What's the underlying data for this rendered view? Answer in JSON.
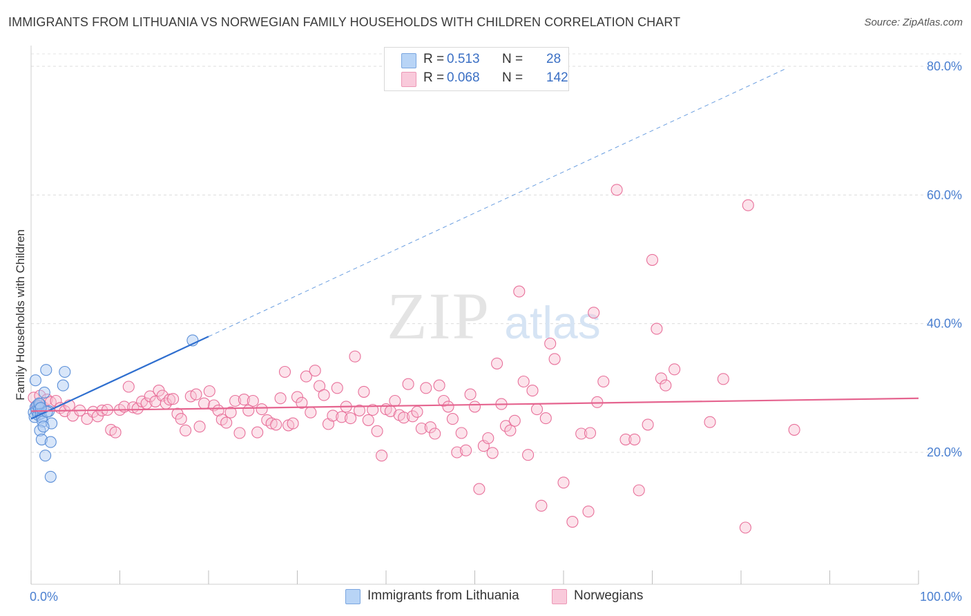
{
  "header": {
    "title": "IMMIGRANTS FROM LITHUANIA VS NORWEGIAN FAMILY HOUSEHOLDS WITH CHILDREN CORRELATION CHART",
    "source": "Source: ZipAtlas.com"
  },
  "legend": {
    "r_label": "R =",
    "n_label": "N =",
    "rows": [
      {
        "r": "0.513",
        "n": "28",
        "color": "#a9c8f2"
      },
      {
        "r": "0.068",
        "n": "142",
        "color": "#f8c0d2"
      }
    ]
  },
  "watermark": {
    "zip": "ZIP",
    "atlas": "atlas"
  },
  "chart_data": {
    "type": "scatter",
    "ylabel": "Family Households with Children",
    "xlim": [
      0,
      100
    ],
    "ylim": [
      0,
      85
    ],
    "x_tick_labels": [
      {
        "value": 0,
        "label": "0.0%"
      },
      {
        "value": 100,
        "label": "100.0%"
      }
    ],
    "y_ticks": [
      {
        "value": 20,
        "label": "20.0%"
      },
      {
        "value": 40,
        "label": "40.0%"
      },
      {
        "value": 60,
        "label": "60.0%"
      },
      {
        "value": 80,
        "label": "80.0%"
      }
    ],
    "grid": "horizontal dashed",
    "series": [
      {
        "name": "Immigrants from Lithuania",
        "color": "#5b8fd8",
        "fill": "#a9c8f2",
        "trend": {
          "x0": 0,
          "y0": 25.2,
          "x1": 20,
          "y1": 38.0,
          "extend_dashed_to_x": 85
        },
        "points": [
          [
            0.3,
            26.2
          ],
          [
            0.4,
            25.5
          ],
          [
            0.5,
            27.0
          ],
          [
            0.6,
            26.5
          ],
          [
            0.7,
            27.3
          ],
          [
            0.8,
            25.8
          ],
          [
            0.9,
            26.8
          ],
          [
            1.0,
            27.5
          ],
          [
            1.1,
            26.0
          ],
          [
            1.2,
            25.4
          ],
          [
            0.5,
            31.2
          ],
          [
            1.3,
            24.8
          ],
          [
            1.5,
            29.3
          ],
          [
            1.7,
            32.8
          ],
          [
            2.0,
            26.4
          ],
          [
            2.3,
            24.5
          ],
          [
            3.6,
            30.4
          ],
          [
            3.8,
            32.5
          ],
          [
            1.0,
            23.4
          ],
          [
            1.2,
            22.0
          ],
          [
            2.2,
            21.6
          ],
          [
            1.6,
            19.5
          ],
          [
            2.2,
            16.2
          ],
          [
            18.2,
            37.4
          ],
          [
            1.4,
            24.0
          ],
          [
            1.8,
            26.3
          ],
          [
            0.9,
            27.6
          ],
          [
            1.1,
            26.9
          ]
        ]
      },
      {
        "name": "Norwegians",
        "color": "#e8709a",
        "fill": "#f8c0d2",
        "trend": {
          "x0": 0,
          "y0": 26.4,
          "x1": 100,
          "y1": 28.4
        },
        "points": [
          [
            0.3,
            28.5
          ],
          [
            0.6,
            27.2
          ],
          [
            1.0,
            28.8
          ],
          [
            1.4,
            27.0
          ],
          [
            1.8,
            28.2
          ],
          [
            2.2,
            27.8
          ],
          [
            2.8,
            28.0
          ],
          [
            3.3,
            26.9
          ],
          [
            3.8,
            26.4
          ],
          [
            4.3,
            27.3
          ],
          [
            4.7,
            25.7
          ],
          [
            5.5,
            26.5
          ],
          [
            6.3,
            25.2
          ],
          [
            7.0,
            26.3
          ],
          [
            7.5,
            25.6
          ],
          [
            8.0,
            26.5
          ],
          [
            8.6,
            26.6
          ],
          [
            9.0,
            23.5
          ],
          [
            9.5,
            23.1
          ],
          [
            10.0,
            26.6
          ],
          [
            10.5,
            27.1
          ],
          [
            11.0,
            30.2
          ],
          [
            11.5,
            27.0
          ],
          [
            12.0,
            26.8
          ],
          [
            12.5,
            27.9
          ],
          [
            13.0,
            27.6
          ],
          [
            13.4,
            28.7
          ],
          [
            14.0,
            27.9
          ],
          [
            14.4,
            29.6
          ],
          [
            14.8,
            28.8
          ],
          [
            15.2,
            27.6
          ],
          [
            15.6,
            28.2
          ],
          [
            16.0,
            28.3
          ],
          [
            16.5,
            26.0
          ],
          [
            16.9,
            25.2
          ],
          [
            17.4,
            23.4
          ],
          [
            18.0,
            28.7
          ],
          [
            18.6,
            29.0
          ],
          [
            19.0,
            24.0
          ],
          [
            19.5,
            27.6
          ],
          [
            20.1,
            29.5
          ],
          [
            20.6,
            27.3
          ],
          [
            21.1,
            26.5
          ],
          [
            21.5,
            25.1
          ],
          [
            22.0,
            24.6
          ],
          [
            22.5,
            26.2
          ],
          [
            23.0,
            28.0
          ],
          [
            23.5,
            23.0
          ],
          [
            24.0,
            28.2
          ],
          [
            24.5,
            26.5
          ],
          [
            25.0,
            28.0
          ],
          [
            25.5,
            23.1
          ],
          [
            26.0,
            26.7
          ],
          [
            26.6,
            25.0
          ],
          [
            27.1,
            24.5
          ],
          [
            27.6,
            24.3
          ],
          [
            28.1,
            28.4
          ],
          [
            28.6,
            32.5
          ],
          [
            29.0,
            24.2
          ],
          [
            29.5,
            24.5
          ],
          [
            30.0,
            28.6
          ],
          [
            30.5,
            27.7
          ],
          [
            31.0,
            31.8
          ],
          [
            31.5,
            26.2
          ],
          [
            32.0,
            32.7
          ],
          [
            32.5,
            30.3
          ],
          [
            33.0,
            28.9
          ],
          [
            33.5,
            24.4
          ],
          [
            34.0,
            25.7
          ],
          [
            34.5,
            30.0
          ],
          [
            35.0,
            25.5
          ],
          [
            35.5,
            27.1
          ],
          [
            36.0,
            25.3
          ],
          [
            36.5,
            34.9
          ],
          [
            37.0,
            26.5
          ],
          [
            37.5,
            29.4
          ],
          [
            38.0,
            25.0
          ],
          [
            38.5,
            26.6
          ],
          [
            39.0,
            23.3
          ],
          [
            39.5,
            19.5
          ],
          [
            40.0,
            26.7
          ],
          [
            40.5,
            26.4
          ],
          [
            41.0,
            28.0
          ],
          [
            41.5,
            25.8
          ],
          [
            42.0,
            25.4
          ],
          [
            42.5,
            30.6
          ],
          [
            43.0,
            25.6
          ],
          [
            43.5,
            26.3
          ],
          [
            44.0,
            23.7
          ],
          [
            44.5,
            30.0
          ],
          [
            45.0,
            23.9
          ],
          [
            45.5,
            22.9
          ],
          [
            46.0,
            30.4
          ],
          [
            46.5,
            28.0
          ],
          [
            47.0,
            27.1
          ],
          [
            47.5,
            25.2
          ],
          [
            48.0,
            20.0
          ],
          [
            48.5,
            23.0
          ],
          [
            49.0,
            20.3
          ],
          [
            49.5,
            29.0
          ],
          [
            50.0,
            27.1
          ],
          [
            50.5,
            14.3
          ],
          [
            51.0,
            21.0
          ],
          [
            51.5,
            22.2
          ],
          [
            52.0,
            19.9
          ],
          [
            52.5,
            33.8
          ],
          [
            53.0,
            27.5
          ],
          [
            53.5,
            24.1
          ],
          [
            54.0,
            23.4
          ],
          [
            54.5,
            24.9
          ],
          [
            55.0,
            45.0
          ],
          [
            55.5,
            31.0
          ],
          [
            56.0,
            19.6
          ],
          [
            56.5,
            29.6
          ],
          [
            57.0,
            26.7
          ],
          [
            57.5,
            11.7
          ],
          [
            58.0,
            25.3
          ],
          [
            58.5,
            36.9
          ],
          [
            59.0,
            34.5
          ],
          [
            60.0,
            15.3
          ],
          [
            61.0,
            9.2
          ],
          [
            62.0,
            22.9
          ],
          [
            62.8,
            10.8
          ],
          [
            63.4,
            41.7
          ],
          [
            63.8,
            27.8
          ],
          [
            64.5,
            31.0
          ],
          [
            66.0,
            60.8
          ],
          [
            67.0,
            22.0
          ],
          [
            68.0,
            22.0
          ],
          [
            68.5,
            14.1
          ],
          [
            69.5,
            24.3
          ],
          [
            70.0,
            49.9
          ],
          [
            70.5,
            39.2
          ],
          [
            71.0,
            31.5
          ],
          [
            71.5,
            30.4
          ],
          [
            72.5,
            32.9
          ],
          [
            76.5,
            24.7
          ],
          [
            78.0,
            31.4
          ],
          [
            80.5,
            8.3
          ],
          [
            80.8,
            58.4
          ],
          [
            86.0,
            23.5
          ],
          [
            63.0,
            23.0
          ]
        ]
      }
    ]
  },
  "bottom_legend": {
    "items": [
      {
        "label": "Immigrants from Lithuania",
        "color": "#a9c8f2"
      },
      {
        "label": "Norwegians",
        "color": "#f8c0d2"
      }
    ]
  }
}
